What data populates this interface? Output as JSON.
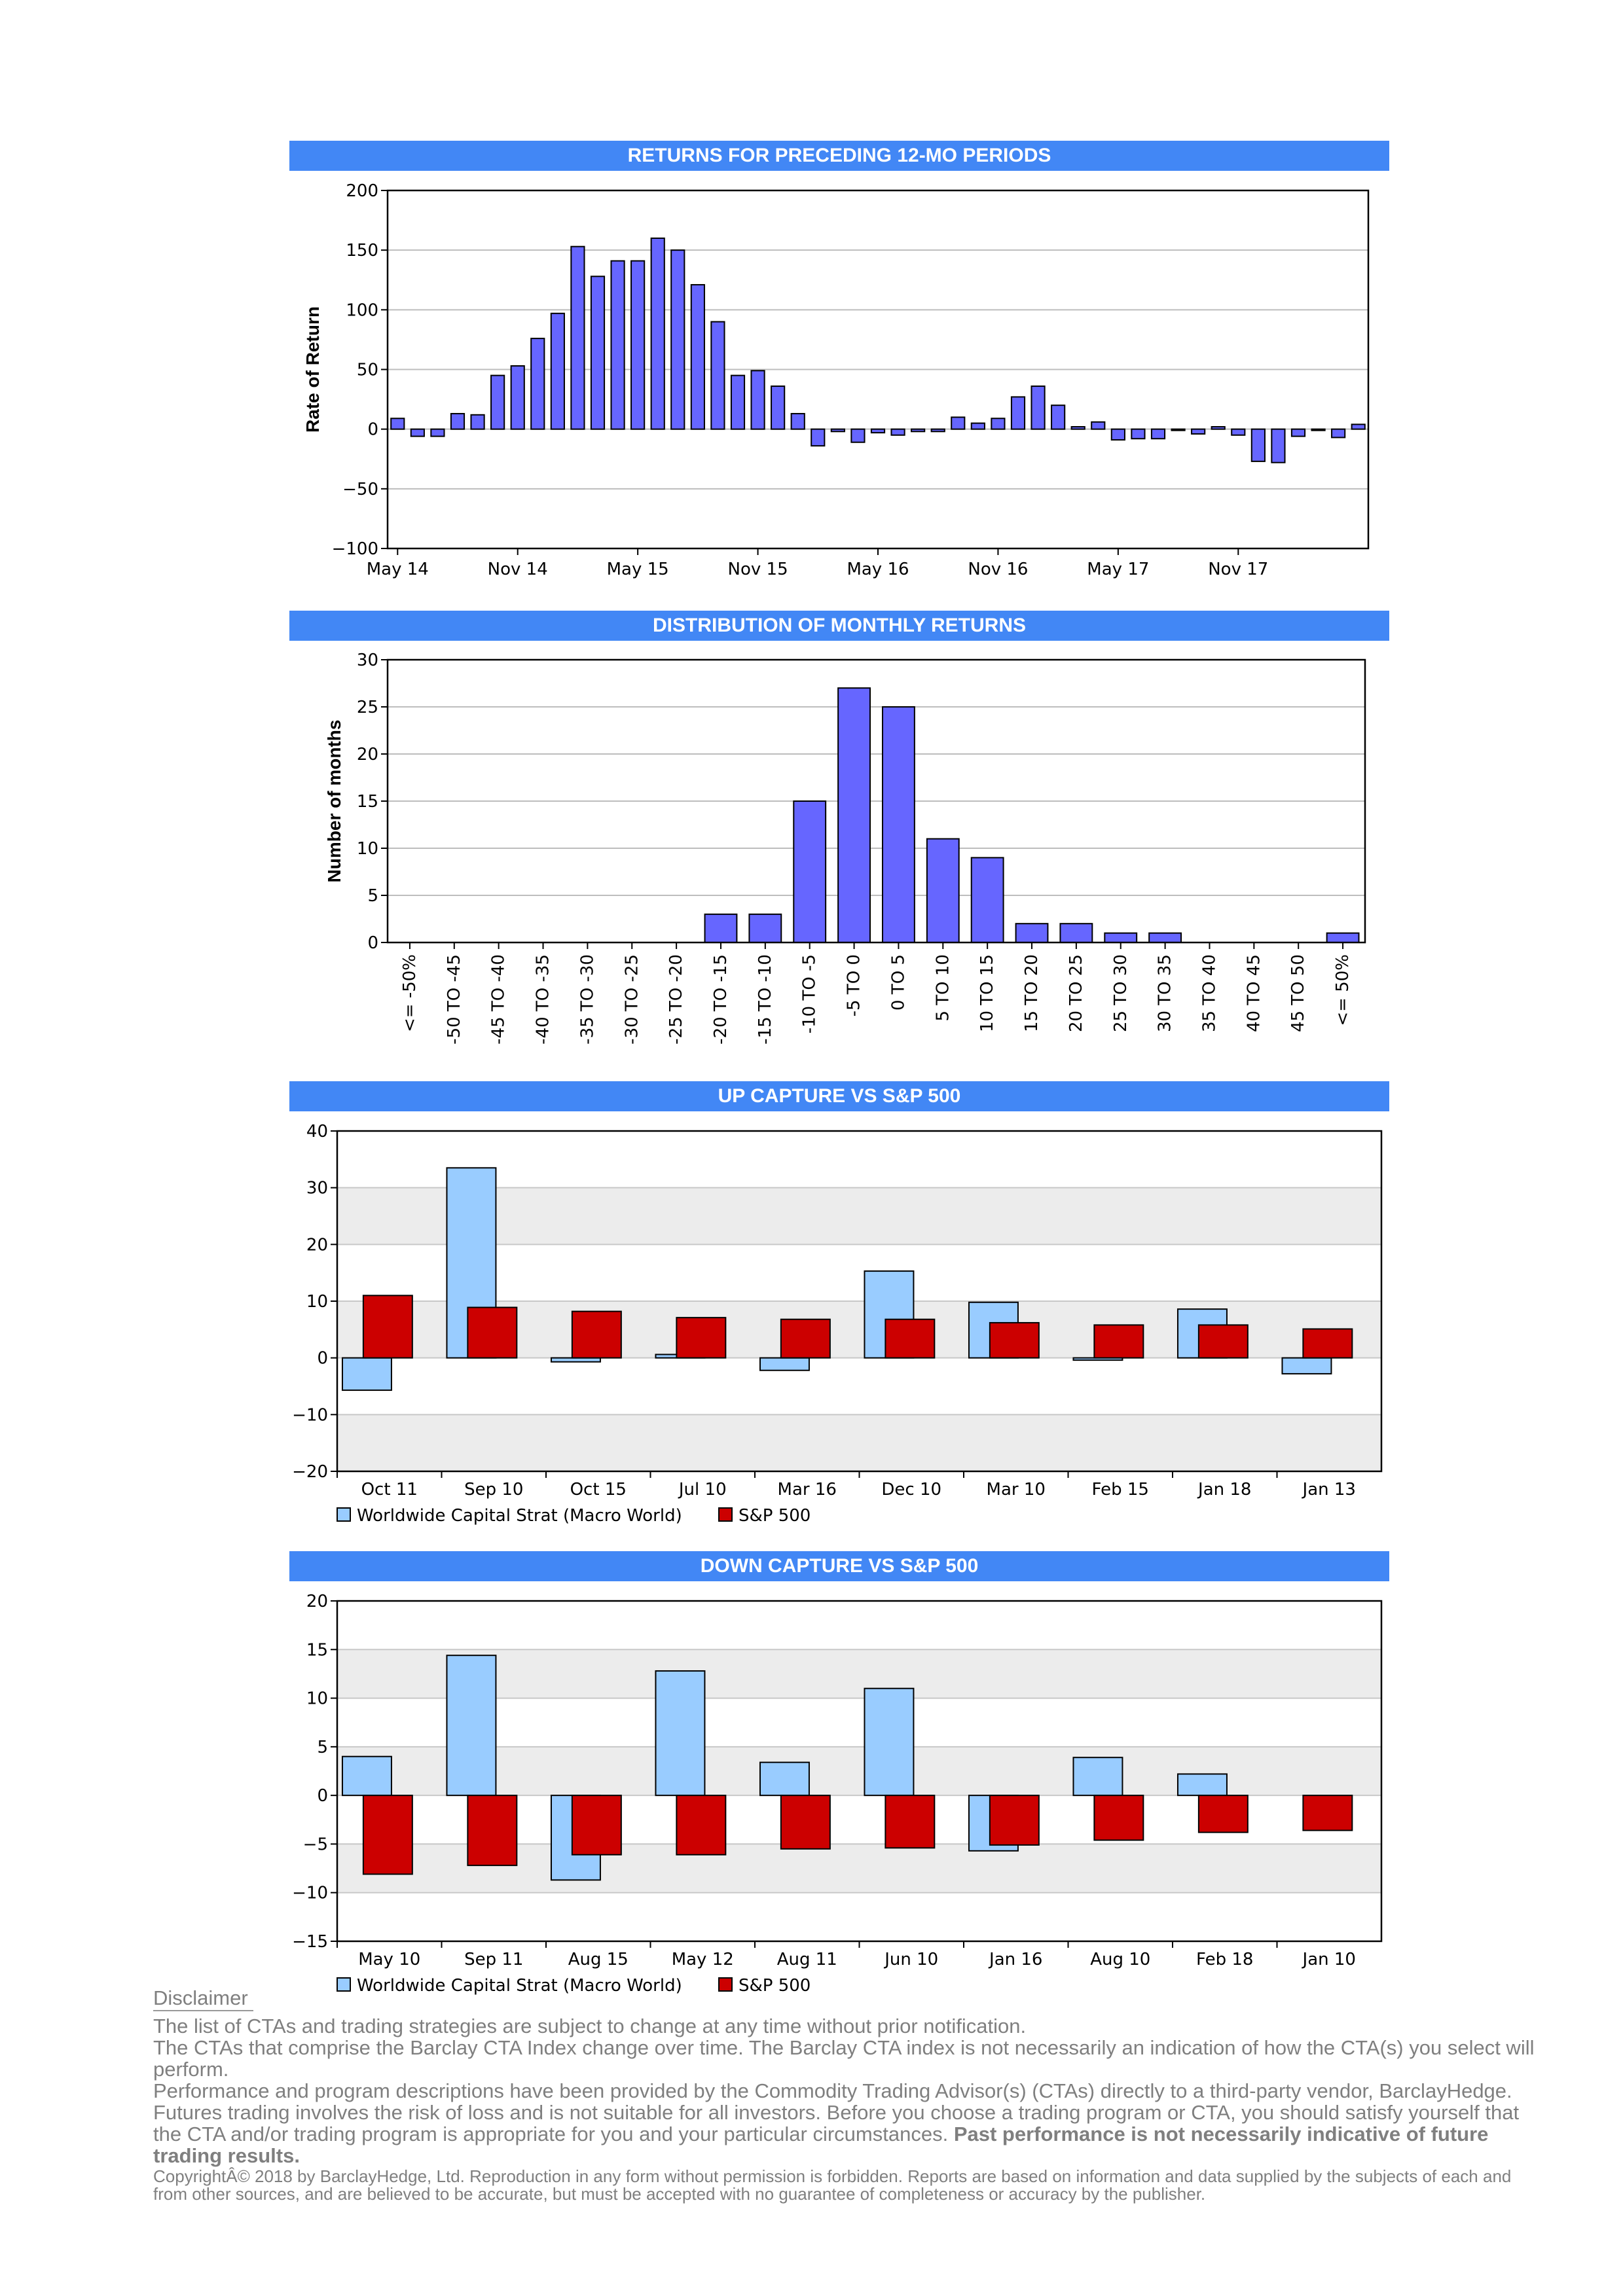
{
  "colors": {
    "banner": "#4287f5",
    "bar_blue": "#6666ff",
    "bar_light": "#99ccff",
    "bar_red": "#cc0000"
  },
  "chart_data": [
    {
      "type": "bar",
      "banner": "RETURNS FOR PRECEDING 12-MO PERIODS",
      "title": "",
      "xlabel": "",
      "ylabel": "Rate of Return",
      "ylim": [
        -100,
        200
      ],
      "yticks": [
        200,
        150,
        100,
        50,
        0,
        -50,
        -100
      ],
      "grid": true,
      "xtick_labels": [
        "May 14",
        "Nov 14",
        "May 15",
        "Nov 15",
        "May 16",
        "Nov 16",
        "May 17",
        "Nov 17"
      ],
      "values": [
        9,
        -6,
        -6,
        13,
        12,
        45,
        53,
        76,
        97,
        153,
        128,
        141,
        141,
        160,
        150,
        121,
        90,
        45,
        49,
        36,
        13,
        -14,
        -2,
        -11,
        -3,
        -5,
        -2,
        -2,
        10,
        5,
        9,
        27,
        36,
        20,
        2,
        6,
        -9,
        -8,
        -8,
        -1,
        -4,
        2,
        -5,
        -27,
        -28,
        -6,
        -1,
        -7,
        4
      ]
    },
    {
      "type": "bar",
      "banner": "DISTRIBUTION OF MONTHLY RETURNS",
      "title": "",
      "xlabel": "",
      "ylabel": "Number of months",
      "ylim": [
        0,
        30
      ],
      "yticks": [
        30,
        25,
        20,
        15,
        10,
        5,
        0
      ],
      "grid": true,
      "categories": [
        "<= -50%",
        "-50 TO -45",
        "-45 TO -40",
        "-40 TO -35",
        "-35 TO -30",
        "-30 TO -25",
        "-25 TO -20",
        "-20 TO -15",
        "-15 TO -10",
        "-10 TO -5",
        "-5 TO 0",
        "0 TO 5",
        "5 TO 10",
        "10 TO 15",
        "15 TO 20",
        "20 TO 25",
        "25 TO 30",
        "30 TO 35",
        "35 TO 40",
        "40 TO 45",
        "45 TO 50",
        "<= 50%"
      ],
      "values": [
        0,
        0,
        0,
        0,
        0,
        0,
        0,
        3,
        3,
        15,
        27,
        25,
        11,
        9,
        2,
        2,
        1,
        1,
        0,
        0,
        0,
        1
      ]
    },
    {
      "type": "bar",
      "banner": "UP CAPTURE VS S&P 500",
      "title": "",
      "xlabel": "",
      "ylabel": "",
      "ylim": [
        -20,
        40
      ],
      "yticks": [
        40,
        30,
        20,
        10,
        0,
        -10,
        -20
      ],
      "grid": true,
      "legend_position": "bottom-left",
      "categories": [
        "Oct 11",
        "Sep 10",
        "Oct 15",
        "Jul 10",
        "Mar 16",
        "Dec 10",
        "Mar 10",
        "Feb 15",
        "Jan 18",
        "Jan 13"
      ],
      "series": [
        {
          "name": "Worldwide Capital Strat (Macro World)",
          "values": [
            -5.7,
            33.5,
            -0.7,
            0.6,
            -2.2,
            15.3,
            9.8,
            -0.4,
            8.6,
            -2.8
          ]
        },
        {
          "name": "S&P 500",
          "values": [
            11.0,
            8.9,
            8.2,
            7.1,
            6.8,
            6.8,
            6.2,
            5.8,
            5.8,
            5.1
          ]
        }
      ]
    },
    {
      "type": "bar",
      "banner": "DOWN CAPTURE VS S&P 500",
      "title": "",
      "xlabel": "",
      "ylabel": "",
      "ylim": [
        -15,
        20
      ],
      "yticks": [
        20,
        15,
        10,
        5,
        0,
        -5,
        -10,
        -15
      ],
      "grid": true,
      "legend_position": "bottom-left",
      "categories": [
        "May 10",
        "Sep 11",
        "Aug 15",
        "May 12",
        "Aug 11",
        "Jun 10",
        "Jan 16",
        "Aug 10",
        "Feb 18",
        "Jan 10"
      ],
      "series": [
        {
          "name": "Worldwide Capital Strat (Macro World)",
          "values": [
            4.0,
            14.4,
            -8.7,
            12.8,
            3.4,
            11.0,
            -5.7,
            3.9,
            2.2,
            0
          ]
        },
        {
          "name": "S&P 500",
          "values": [
            -8.1,
            -7.2,
            -6.1,
            -6.1,
            -5.5,
            -5.4,
            -5.1,
            -4.6,
            -3.8,
            -3.6
          ]
        }
      ]
    }
  ],
  "disclaimer": {
    "title": "Disclaimer",
    "line1": "The list of CTAs and trading strategies are subject to change at any time without prior notification.",
    "line2": "The CTAs that comprise the Barclay CTA Index change over time.  The Barclay CTA index is not necessarily an indication of how the CTA(s) you select will perform.",
    "line3": "Performance and program descriptions have been provided by the Commodity Trading Advisor(s) (CTAs) directly to a third-party vendor, BarclayHedge. Futures trading involves the risk of loss and is not suitable for all investors.  Before you choose a trading program or CTA, you should satisfy yourself that the CTA and/or trading program is appropriate for you and your particular circumstances.",
    "line3_bold": "Past performance is not necessarily indicative of future trading results.",
    "copyright": "CopyrightÂ©  2018 by BarclayHedge, Ltd. Reproduction in any form without permission is forbidden. Reports are based on information and data supplied by the subjects of each and from other sources, and are believed to be accurate, but must be accepted with no guarantee of completeness or accuracy by the publisher."
  }
}
